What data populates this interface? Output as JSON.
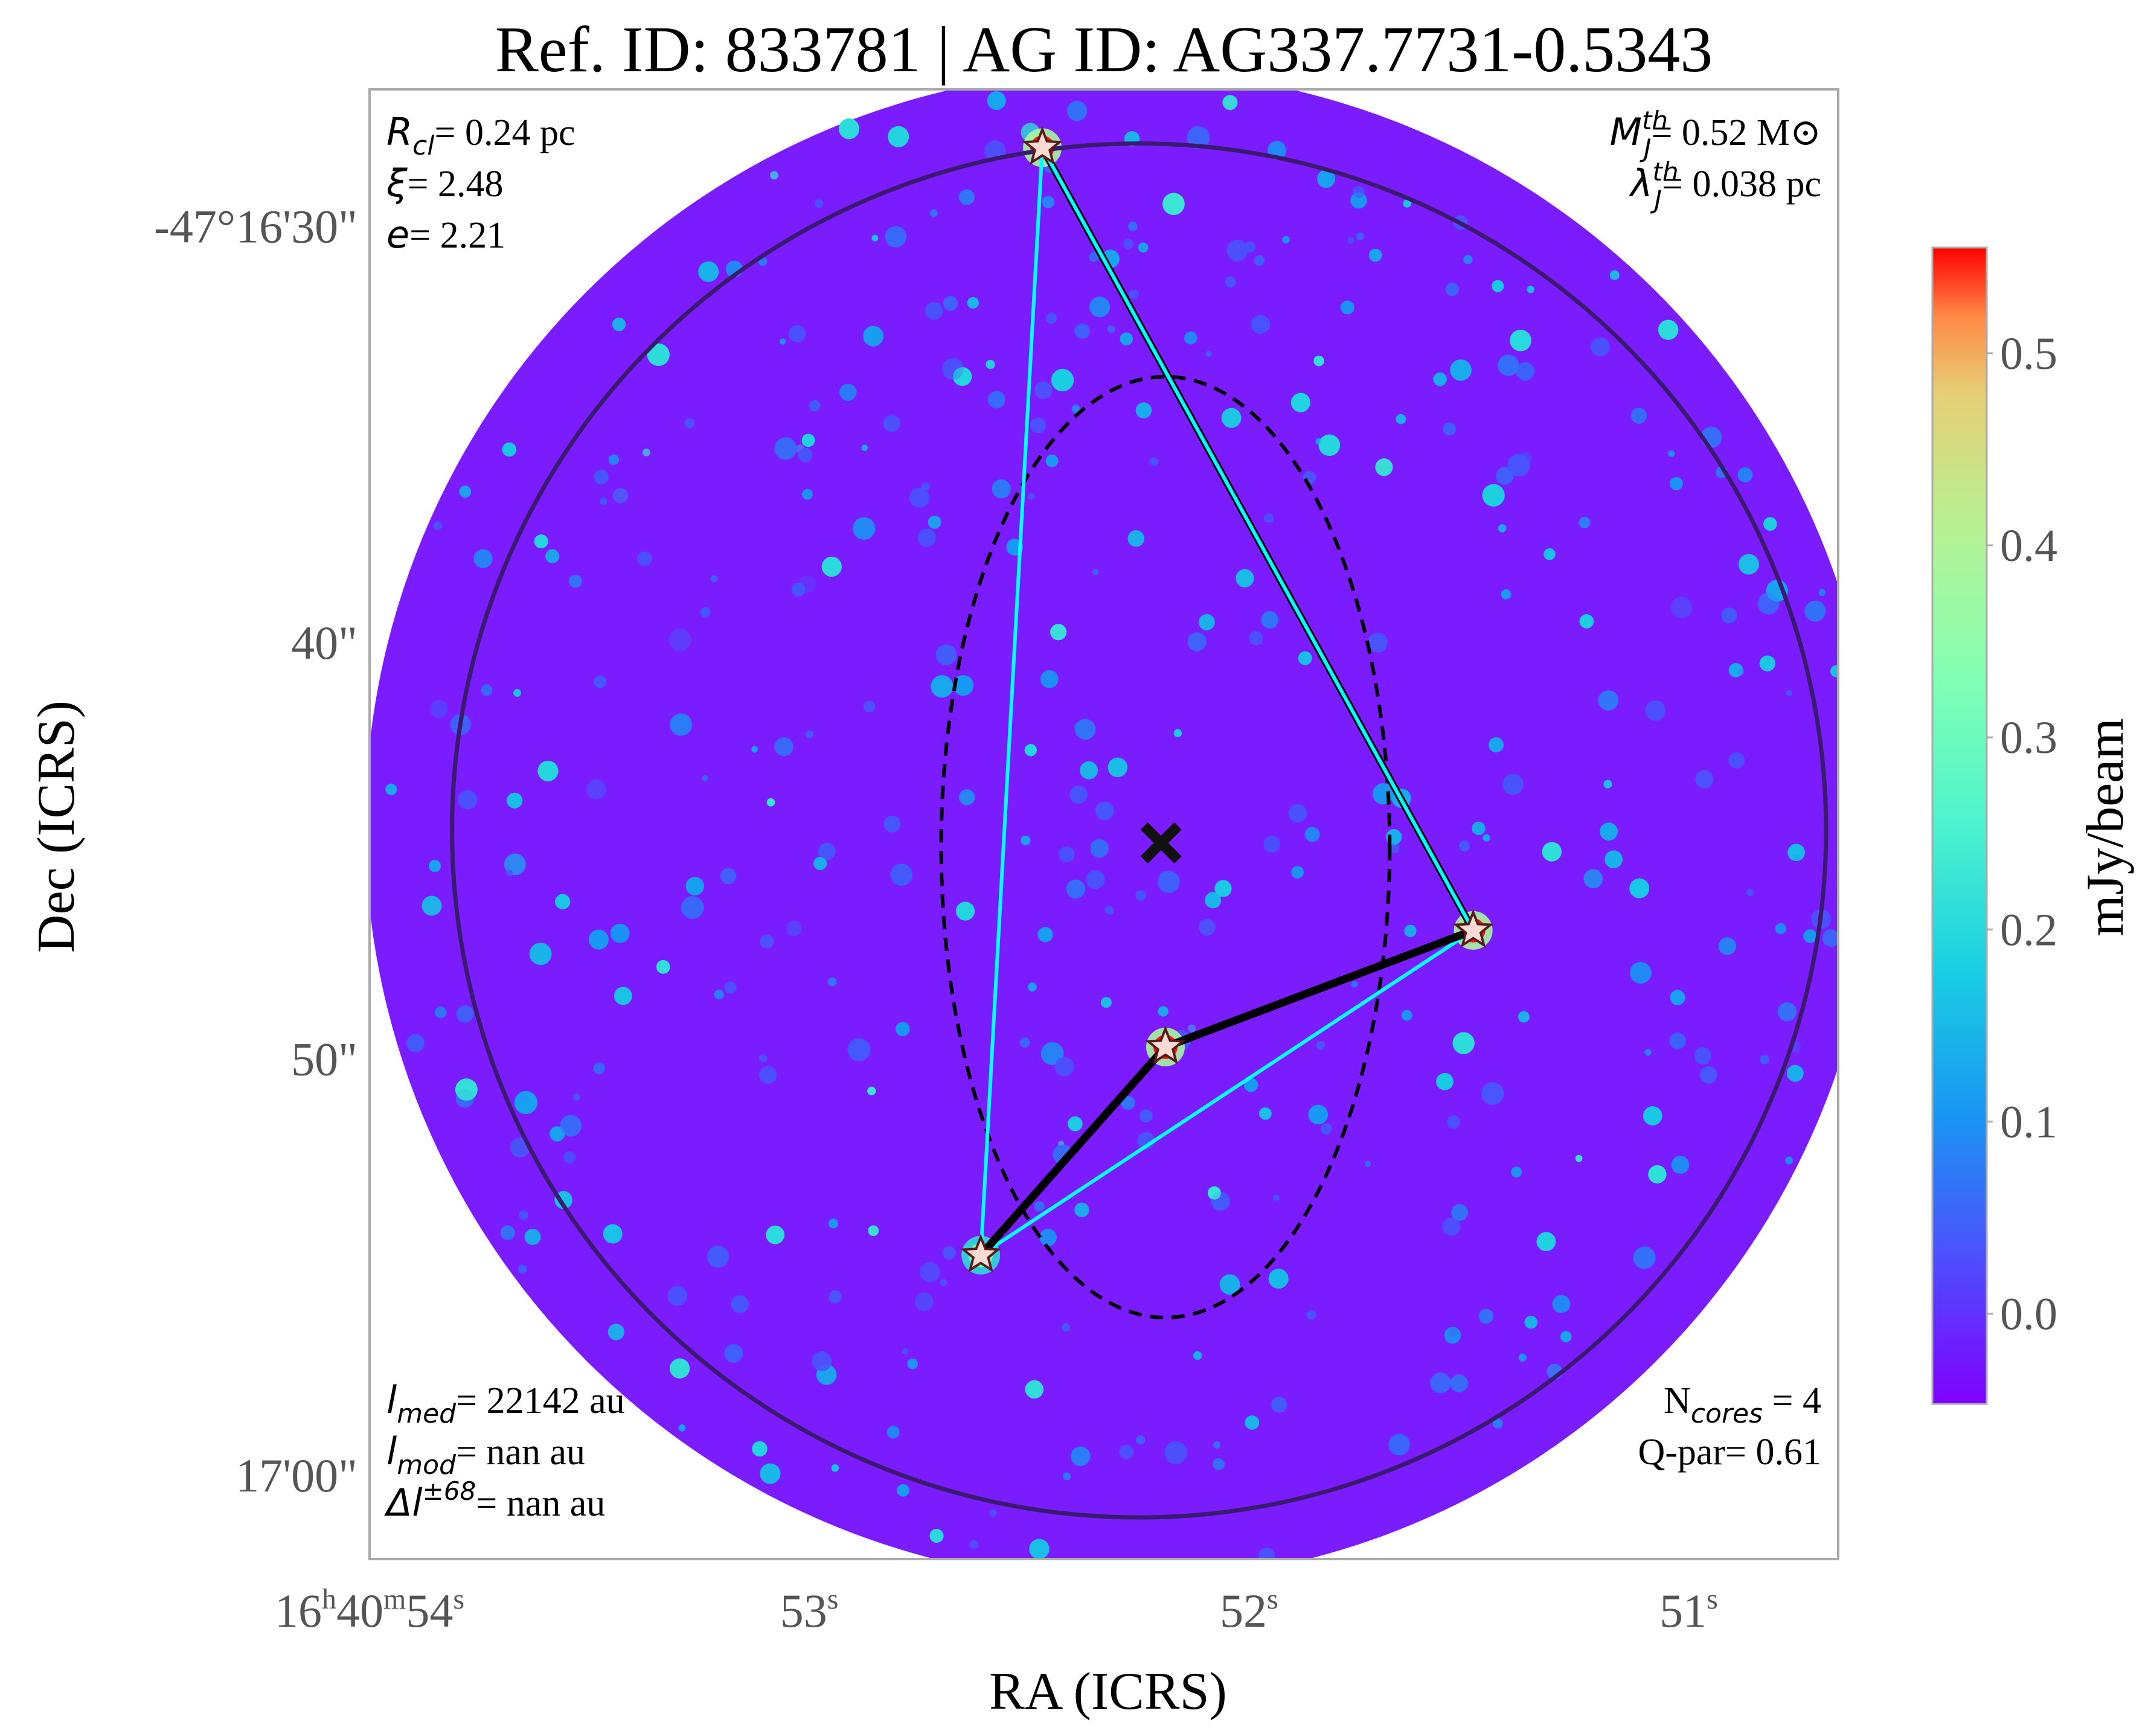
{
  "chart_data": {
    "type": "heatmap",
    "title": "Ref. ID: 833781 | AG ID: AG337.7731-0.5343",
    "xlabel": "RA (ICRS)",
    "ylabel": "Dec (ICRS)",
    "x_ticks": [
      {
        "value": 54,
        "label_parts": [
          [
            "16",
            ""
          ],
          [
            "h",
            "sup"
          ],
          [
            "40",
            ""
          ],
          [
            "m",
            "sup"
          ],
          [
            "54",
            ""
          ],
          [
            "s",
            "sup"
          ]
        ]
      },
      {
        "value": 53,
        "label_parts": [
          [
            "53",
            ""
          ],
          [
            "s",
            "sup"
          ]
        ]
      },
      {
        "value": 52,
        "label_parts": [
          [
            "52",
            ""
          ],
          [
            "s",
            "sup"
          ]
        ]
      },
      {
        "value": 51,
        "label_parts": [
          [
            "51",
            ""
          ],
          [
            "s",
            "sup"
          ]
        ]
      }
    ],
    "y_ticks": [
      {
        "value": 30,
        "label": "-47°16'30\""
      },
      {
        "value": 40,
        "label": "40\""
      },
      {
        "value": 50,
        "label": "50\""
      },
      {
        "value": 60,
        "label": "17'00\""
      }
    ],
    "xlim": [
      54.0,
      50.66
    ],
    "ylim": [
      62.0,
      26.7
    ],
    "colorbar": {
      "label": "mJy/beam",
      "colormap": "rainbow",
      "range": [
        -0.047,
        0.555
      ],
      "ticks": [
        0.0,
        0.1,
        0.2,
        0.3,
        0.4,
        0.5
      ],
      "tick_labels": [
        "0.0",
        "0.1",
        "0.2",
        "0.3",
        "0.4",
        "0.5"
      ]
    },
    "map_field": {
      "center": [
        52.29,
        44.4
      ],
      "radius_s": 1.72
    },
    "cores": [
      {
        "ra": 52.47,
        "dec": 28.1,
        "flux": 0.55
      },
      {
        "ra": 51.49,
        "dec": 46.9,
        "flux": 0.55
      },
      {
        "ra": 52.19,
        "dec": 49.7,
        "flux": 0.55
      },
      {
        "ra": 52.61,
        "dec": 54.7,
        "flux": 0.3
      }
    ],
    "mst_edges": [
      [
        0,
        1
      ],
      [
        1,
        2
      ],
      [
        2,
        3
      ]
    ],
    "triangulation_edges": [
      [
        0,
        1
      ],
      [
        0,
        3
      ],
      [
        1,
        3
      ]
    ],
    "centroid": {
      "ra": 52.2,
      "dec": 44.8
    },
    "dashed_ellipse": {
      "center": [
        52.19,
        44.9
      ],
      "semi_major_arcsec": 11.3,
      "semi_minor_s": 0.51
    },
    "outer_circle": {
      "center": [
        52.25,
        44.5
      ],
      "radius_arcsec": 16.5
    },
    "colors": {
      "outer_circle": "#3a1a6e",
      "mst_edge": "#000000",
      "tri_edge": "#00ffff",
      "ellipse": "#000000",
      "centroid": "#111111",
      "star_fill": "#f8dcd4",
      "star_stroke": "#5a1a1a",
      "frame": "#aaaaaa"
    },
    "annotations": {
      "top_left": [
        {
          "sym": "R",
          "sub": "cl",
          "sup": "",
          "rest": "= 0.24 pc"
        },
        {
          "sym": "ξ",
          "sub": "",
          "sup": "",
          "rest": "= 2.48"
        },
        {
          "sym": "e",
          "sub": "",
          "sup": "",
          "rest": "= 2.21"
        }
      ],
      "top_right": [
        {
          "sym": "M",
          "sub": "J",
          "sup": "th",
          "rest": "= 0.52 M⊙"
        },
        {
          "sym": "λ",
          "sub": "J",
          "sup": "th",
          "rest": "= 0.038 pc"
        }
      ],
      "bottom_left": [
        {
          "sym": "l",
          "sub": "med",
          "sup": "",
          "rest": "= 22142 au"
        },
        {
          "sym": "l",
          "sub": "mod",
          "sup": "",
          "rest": "= nan au"
        },
        {
          "sym": "Δl",
          "sub": "",
          "sup": "±68",
          "rest": "= nan au"
        }
      ],
      "bottom_right": [
        {
          "sym": "N",
          "sub": "cores",
          "sup": "",
          "rest": " = 4",
          "upright": true
        },
        {
          "sym": "Q-par",
          "sub": "",
          "sup": "",
          "rest": "= 0.61",
          "upright": true
        }
      ]
    }
  }
}
